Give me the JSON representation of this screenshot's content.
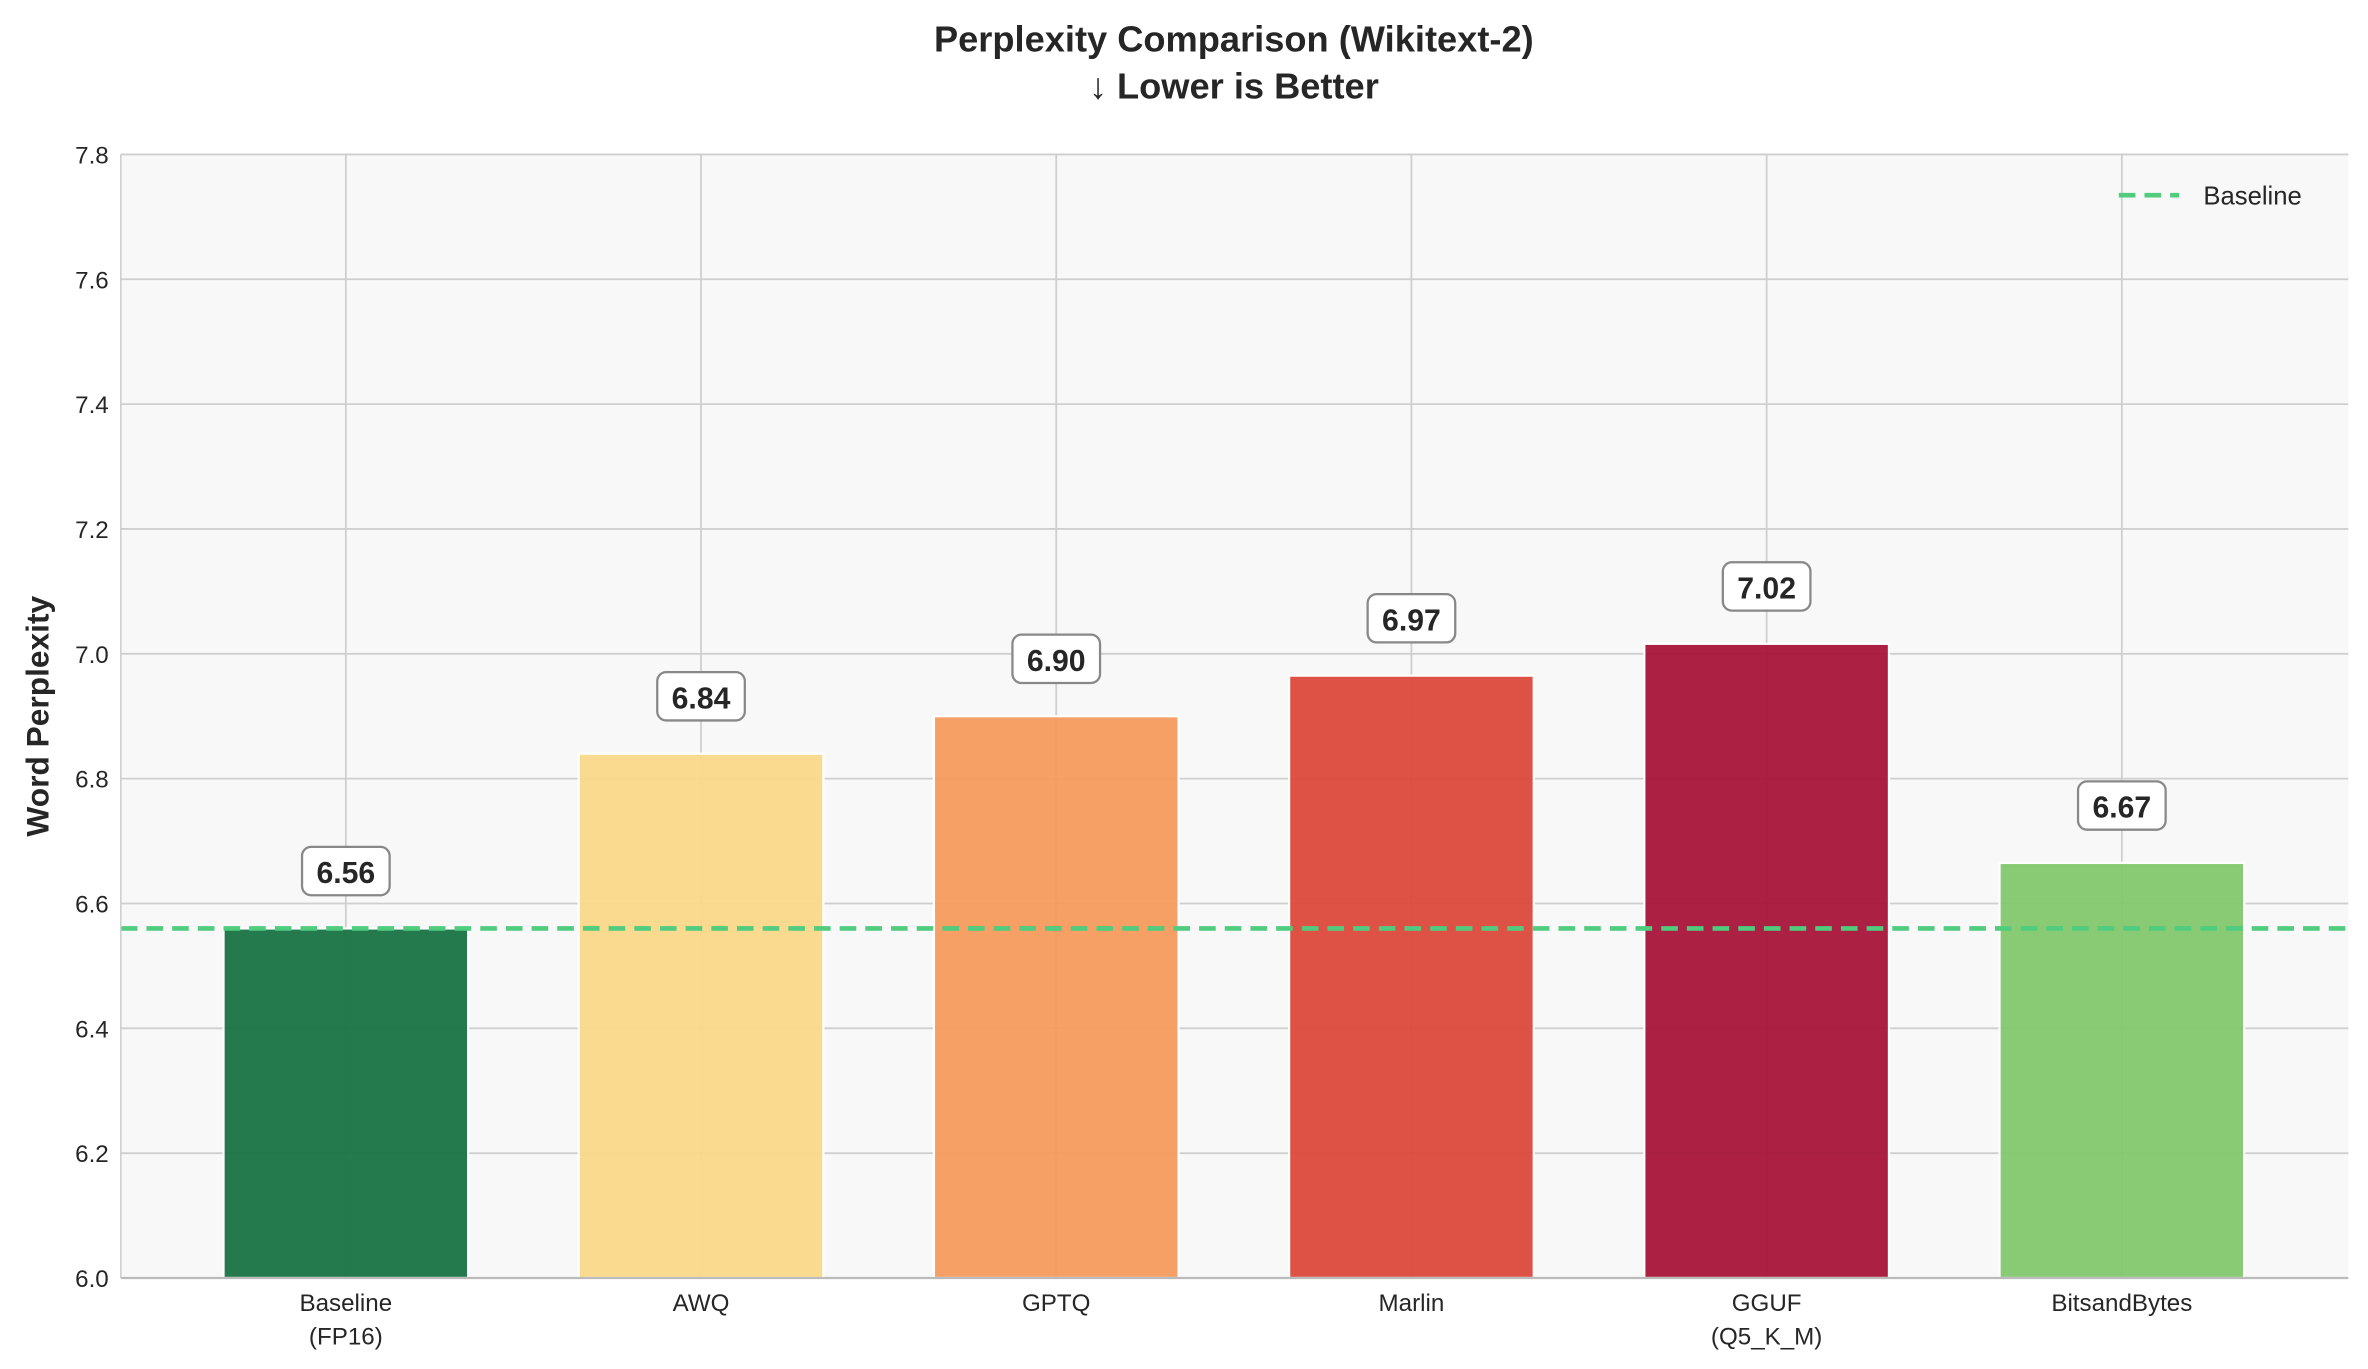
{
  "chart_data": {
    "type": "bar",
    "title": "Perplexity Comparison (Wikitext-2)",
    "subtitle": "↓ Lower is Better",
    "xlabel": "",
    "ylabel": "Word Perplexity",
    "ylim": [
      6.0,
      7.8
    ],
    "yticks": [
      "6.0",
      "6.2",
      "6.4",
      "6.6",
      "6.8",
      "7.0",
      "7.2",
      "7.4",
      "7.6",
      "7.8"
    ],
    "grid": true,
    "categories": [
      [
        "Baseline",
        "(FP16)"
      ],
      [
        "AWQ"
      ],
      [
        "GPTQ"
      ],
      [
        "Marlin"
      ],
      [
        "GGUF",
        "(Q5_K_M)"
      ],
      [
        "BitsandBytes"
      ]
    ],
    "values": [
      6.56,
      6.84,
      6.9,
      6.965,
      7.016,
      6.665
    ],
    "data_labels": [
      "6.56",
      "6.84",
      "6.90",
      "6.97",
      "7.02",
      "6.67"
    ],
    "colors": [
      "#1a7444",
      "#fbd98a",
      "#f79c5e",
      "#dc4a3c",
      "#a8163a",
      "#84c86e"
    ],
    "baseline": {
      "name": "Baseline",
      "value": 6.56,
      "color": "#4fcc7e",
      "style": "dashed"
    },
    "legend_position": "top-right",
    "background": "#f8f8f8"
  }
}
